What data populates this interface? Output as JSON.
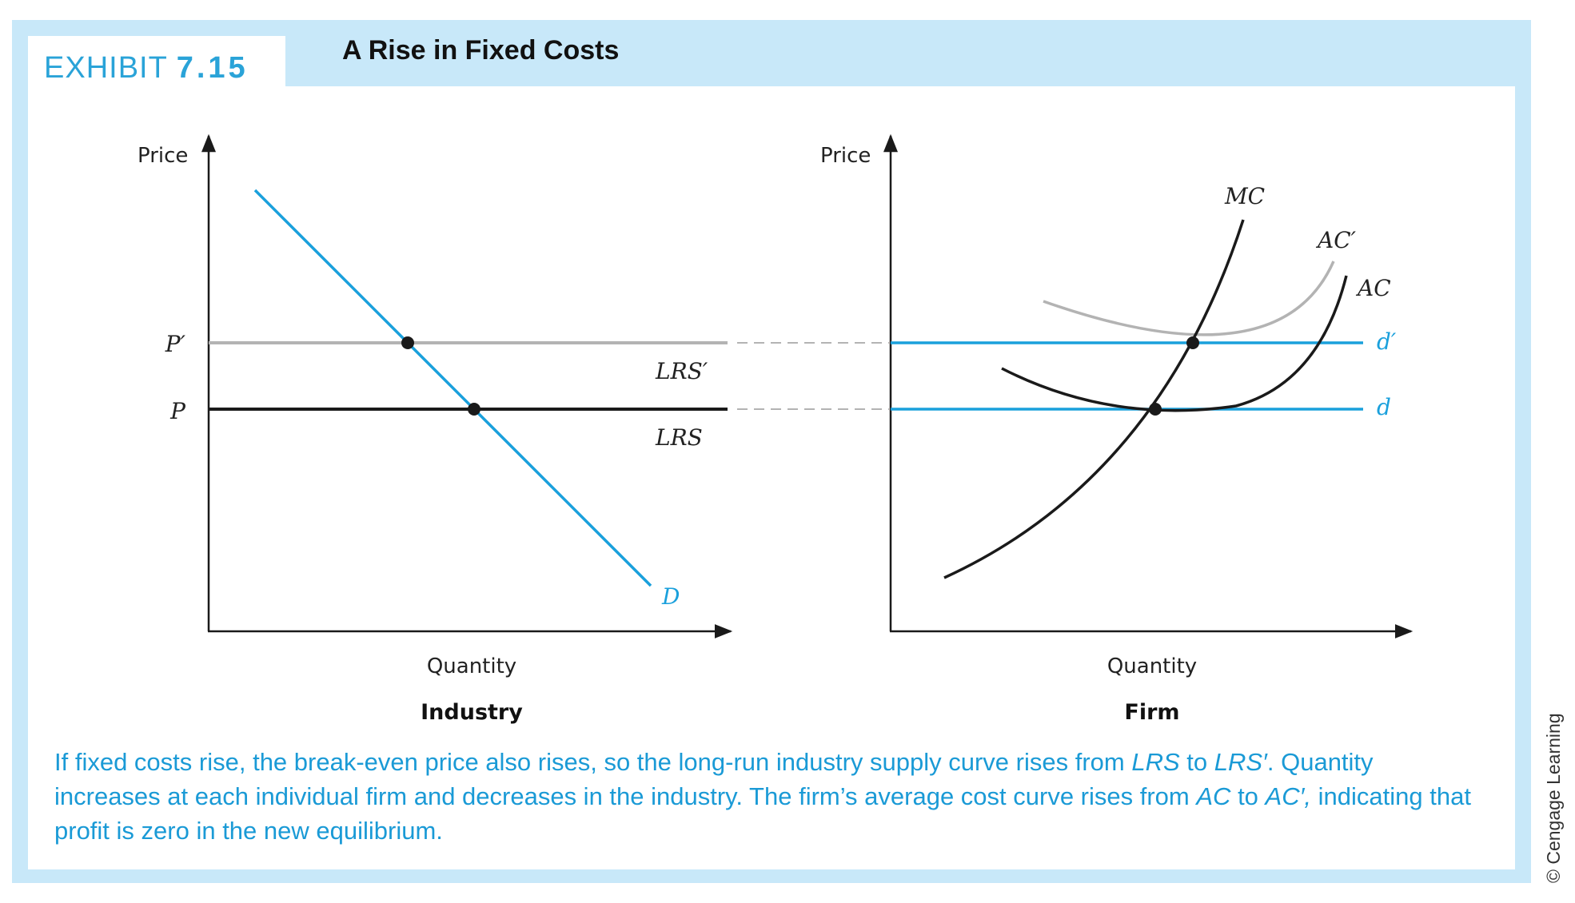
{
  "exhibit": {
    "label": "EXHIBIT",
    "number": "7.15",
    "title": "A Rise in Fixed Costs"
  },
  "industry": {
    "y_axis_label": "Price",
    "x_axis_label": "Quantity",
    "panel_label": "Industry",
    "price_labels": {
      "p_prime": "P′",
      "p": "P"
    },
    "curve_labels": {
      "lrs_prime": "LRS′",
      "lrs": "LRS",
      "demand": "D"
    }
  },
  "firm": {
    "y_axis_label": "Price",
    "x_axis_label": "Quantity",
    "panel_label": "Firm",
    "curve_labels": {
      "mc": "MC",
      "ac_prime": "AC′",
      "ac": "AC",
      "d_prime": "d′",
      "d": "d"
    }
  },
  "caption": {
    "s1": "If fixed costs rise, the break-even price also rises, so the long-run industry supply curve rises from ",
    "lrs": "LRS",
    "s2": " to ",
    "lrs_prime": "LRS′",
    "s3": ". Quantity increases at each individual firm and decreases in the industry. The firm’s average cost curve rises from ",
    "ac": "AC",
    "s4": " to ",
    "ac_prime": "AC′,",
    "s5": " indicating that profit is zero in the new equilibrium."
  },
  "credit": "© Cengage Learning",
  "colors": {
    "blue": "#1aa0dc",
    "gray": "#b3b3b3",
    "black": "#1a1a1a",
    "frame": "#c8e8f9"
  }
}
